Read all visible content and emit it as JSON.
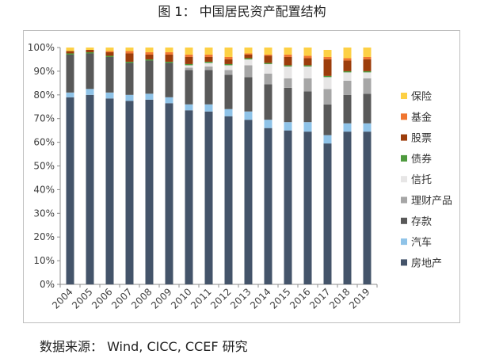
{
  "figure": {
    "title": "图 1： 中国居民资产配置结构",
    "source": "数据来源： Wind, CICC, CCEF 研究"
  },
  "chart_data": {
    "type": "bar",
    "stacked": true,
    "categories": [
      "2004",
      "2005",
      "2006",
      "2007",
      "2008",
      "2009",
      "2010",
      "2011",
      "2012",
      "2013",
      "2014",
      "2015",
      "2016",
      "2017",
      "2018",
      "2019"
    ],
    "ylim": [
      0,
      100
    ],
    "yticks": [
      "0%",
      "10%",
      "20%",
      "30%",
      "40%",
      "50%",
      "60%",
      "70%",
      "80%",
      "90%",
      "100%"
    ],
    "xlabel": "",
    "ylabel": "",
    "grid": false,
    "legend_position": "right",
    "series": [
      {
        "name": "房地产",
        "color": "#44546a",
        "values": [
          79,
          80,
          78.5,
          77.5,
          78,
          76.5,
          73.5,
          73,
          71,
          69.5,
          66,
          65,
          64.5,
          59.5,
          64.5,
          64.5
        ]
      },
      {
        "name": "汽车",
        "color": "#8fc3e8",
        "values": [
          2,
          2.5,
          2.5,
          2.5,
          2.5,
          2.5,
          2.5,
          3,
          3,
          3.5,
          3.5,
          3.5,
          4,
          3.5,
          3.5,
          3.5
        ]
      },
      {
        "name": "存款",
        "color": "#595959",
        "values": [
          16,
          15,
          15,
          13.5,
          14,
          14.5,
          14.5,
          14.5,
          14.5,
          14.5,
          15,
          14.5,
          13,
          13,
          12,
          12.5
        ]
      },
      {
        "name": "理财产品",
        "color": "#a6a6a6",
        "values": [
          0,
          0,
          0,
          0,
          0,
          0,
          1,
          1.5,
          2,
          5,
          4.5,
          4,
          5.5,
          6.5,
          6,
          6.5
        ]
      },
      {
        "name": "信托",
        "color": "#e7e6e6",
        "values": [
          0,
          0,
          0,
          0,
          0,
          0,
          1,
          1.5,
          2,
          2.5,
          4,
          5,
          5,
          5,
          3.5,
          2.5
        ]
      },
      {
        "name": "债券",
        "color": "#4e9a3e",
        "values": [
          0.5,
          0.5,
          0.5,
          0.5,
          0.5,
          0.5,
          0.5,
          0.5,
          0.5,
          0.5,
          0.5,
          0.5,
          0.5,
          0.5,
          0.5,
          0.5
        ]
      },
      {
        "name": "股票",
        "color": "#9c3d0b",
        "values": [
          1,
          1,
          1.5,
          3.5,
          2,
          3,
          3,
          2,
          2,
          1.5,
          3,
          3.5,
          3,
          7,
          4.5,
          5
        ]
      },
      {
        "name": "基金",
        "color": "#f07630",
        "values": [
          0,
          0,
          0.5,
          1,
          1,
          1,
          1,
          1,
          1,
          0.5,
          0.5,
          1,
          1,
          1,
          1,
          1
        ]
      },
      {
        "name": "保险",
        "color": "#fdd045",
        "values": [
          1.5,
          1,
          1.5,
          1.5,
          2,
          2,
          3,
          3,
          4,
          2.5,
          3,
          3,
          3.5,
          3,
          4.5,
          4
        ]
      }
    ]
  }
}
